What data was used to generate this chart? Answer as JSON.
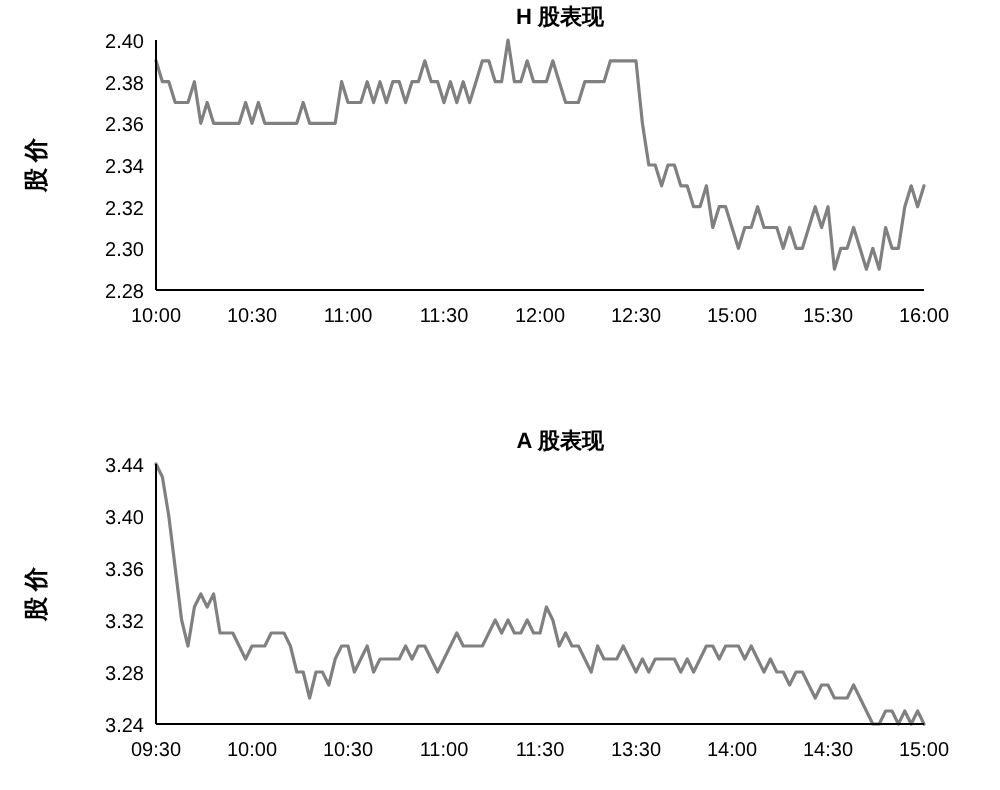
{
  "chart_data": [
    {
      "type": "line",
      "title": "H 股表现",
      "ylabel": "股 价",
      "color": "#808080",
      "categories": [
        "10:00",
        null,
        null,
        null,
        null,
        null,
        null,
        null,
        null,
        null,
        null,
        null,
        null,
        null,
        null,
        "10:30",
        null,
        null,
        null,
        null,
        null,
        null,
        null,
        null,
        null,
        null,
        null,
        null,
        null,
        null,
        "11:00",
        null,
        null,
        null,
        null,
        null,
        null,
        null,
        null,
        null,
        null,
        null,
        null,
        null,
        null,
        "11:30",
        null,
        null,
        null,
        null,
        null,
        null,
        null,
        null,
        null,
        null,
        null,
        null,
        null,
        null,
        "12:00",
        null,
        null,
        null,
        null,
        null,
        null,
        null,
        null,
        null,
        null,
        null,
        null,
        null,
        null,
        "12:30",
        null,
        null,
        null,
        null,
        null,
        null,
        null,
        null,
        null,
        null,
        null,
        null,
        null,
        null,
        "15:00",
        null,
        null,
        null,
        null,
        null,
        null,
        null,
        null,
        null,
        null,
        null,
        null,
        null,
        null,
        "15:30",
        null,
        null,
        null,
        null,
        null,
        null,
        null,
        null,
        null,
        null,
        null,
        null,
        null,
        null,
        "16:00"
      ],
      "values": [
        2.39,
        2.38,
        2.38,
        2.37,
        2.37,
        2.37,
        2.38,
        2.36,
        2.37,
        2.36,
        2.36,
        2.36,
        2.36,
        2.36,
        2.37,
        2.36,
        2.37,
        2.36,
        2.36,
        2.36,
        2.36,
        2.36,
        2.36,
        2.37,
        2.36,
        2.36,
        2.36,
        2.36,
        2.36,
        2.38,
        2.37,
        2.37,
        2.37,
        2.38,
        2.37,
        2.38,
        2.37,
        2.38,
        2.38,
        2.37,
        2.38,
        2.38,
        2.39,
        2.38,
        2.38,
        2.37,
        2.38,
        2.37,
        2.38,
        2.37,
        2.38,
        2.39,
        2.39,
        2.38,
        2.38,
        2.4,
        2.38,
        2.38,
        2.39,
        2.38,
        2.38,
        2.38,
        2.39,
        2.38,
        2.37,
        2.37,
        2.37,
        2.38,
        2.38,
        2.38,
        2.38,
        2.39,
        2.39,
        2.39,
        2.39,
        2.39,
        2.36,
        2.34,
        2.34,
        2.33,
        2.34,
        2.34,
        2.33,
        2.33,
        2.32,
        2.32,
        2.33,
        2.31,
        2.32,
        2.32,
        2.31,
        2.3,
        2.31,
        2.31,
        2.32,
        2.31,
        2.31,
        2.31,
        2.3,
        2.31,
        2.3,
        2.3,
        2.31,
        2.32,
        2.31,
        2.32,
        2.29,
        2.3,
        2.3,
        2.31,
        2.3,
        2.29,
        2.3,
        2.29,
        2.31,
        2.3,
        2.3,
        2.32,
        2.33,
        2.32,
        2.33
      ],
      "ylim": [
        2.28,
        2.4
      ],
      "yticks": [
        {
          "value": 2.28,
          "label": "2.28"
        },
        {
          "value": 2.3,
          "label": "2.30"
        },
        {
          "value": 2.32,
          "label": "2.32"
        },
        {
          "value": 2.34,
          "label": "2.34"
        },
        {
          "value": 2.36,
          "label": "2.36"
        },
        {
          "value": 2.38,
          "label": "2.38"
        },
        {
          "value": 2.4,
          "label": "2.40"
        }
      ]
    },
    {
      "type": "line",
      "title": "A 股表现",
      "ylabel": "股 价",
      "color": "#808080",
      "categories": [
        "09:30",
        null,
        null,
        null,
        null,
        null,
        null,
        null,
        null,
        null,
        null,
        null,
        null,
        null,
        null,
        "10:00",
        null,
        null,
        null,
        null,
        null,
        null,
        null,
        null,
        null,
        null,
        null,
        null,
        null,
        null,
        "10:30",
        null,
        null,
        null,
        null,
        null,
        null,
        null,
        null,
        null,
        null,
        null,
        null,
        null,
        null,
        "11:00",
        null,
        null,
        null,
        null,
        null,
        null,
        null,
        null,
        null,
        null,
        null,
        null,
        null,
        null,
        "11:30",
        null,
        null,
        null,
        null,
        null,
        null,
        null,
        null,
        null,
        null,
        null,
        null,
        null,
        null,
        "13:30",
        null,
        null,
        null,
        null,
        null,
        null,
        null,
        null,
        null,
        null,
        null,
        null,
        null,
        null,
        "14:00",
        null,
        null,
        null,
        null,
        null,
        null,
        null,
        null,
        null,
        null,
        null,
        null,
        null,
        null,
        "14:30",
        null,
        null,
        null,
        null,
        null,
        null,
        null,
        null,
        null,
        null,
        null,
        null,
        null,
        null,
        "15:00"
      ],
      "values": [
        3.44,
        3.43,
        3.4,
        3.36,
        3.32,
        3.3,
        3.33,
        3.34,
        3.33,
        3.34,
        3.31,
        3.31,
        3.31,
        3.3,
        3.29,
        3.3,
        3.3,
        3.3,
        3.31,
        3.31,
        3.31,
        3.3,
        3.28,
        3.28,
        3.26,
        3.28,
        3.28,
        3.27,
        3.29,
        3.3,
        3.3,
        3.28,
        3.29,
        3.3,
        3.28,
        3.29,
        3.29,
        3.29,
        3.29,
        3.3,
        3.29,
        3.3,
        3.3,
        3.29,
        3.28,
        3.29,
        3.3,
        3.31,
        3.3,
        3.3,
        3.3,
        3.3,
        3.31,
        3.32,
        3.31,
        3.32,
        3.31,
        3.31,
        3.32,
        3.31,
        3.31,
        3.33,
        3.32,
        3.3,
        3.31,
        3.3,
        3.3,
        3.29,
        3.28,
        3.3,
        3.29,
        3.29,
        3.29,
        3.3,
        3.29,
        3.28,
        3.29,
        3.28,
        3.29,
        3.29,
        3.29,
        3.29,
        3.28,
        3.29,
        3.28,
        3.29,
        3.3,
        3.3,
        3.29,
        3.3,
        3.3,
        3.3,
        3.29,
        3.3,
        3.29,
        3.28,
        3.29,
        3.28,
        3.28,
        3.27,
        3.28,
        3.28,
        3.27,
        3.26,
        3.27,
        3.27,
        3.26,
        3.26,
        3.26,
        3.27,
        3.26,
        3.25,
        3.24,
        3.24,
        3.25,
        3.25,
        3.24,
        3.25,
        3.24,
        3.25,
        3.24
      ],
      "ylim": [
        3.24,
        3.44
      ],
      "yticks": [
        {
          "value": 3.24,
          "label": "3.24"
        },
        {
          "value": 3.28,
          "label": "3.28"
        },
        {
          "value": 3.32,
          "label": "3.32"
        },
        {
          "value": 3.36,
          "label": "3.36"
        },
        {
          "value": 3.4,
          "label": "3.40"
        },
        {
          "value": 3.44,
          "label": "3.44"
        }
      ]
    }
  ]
}
